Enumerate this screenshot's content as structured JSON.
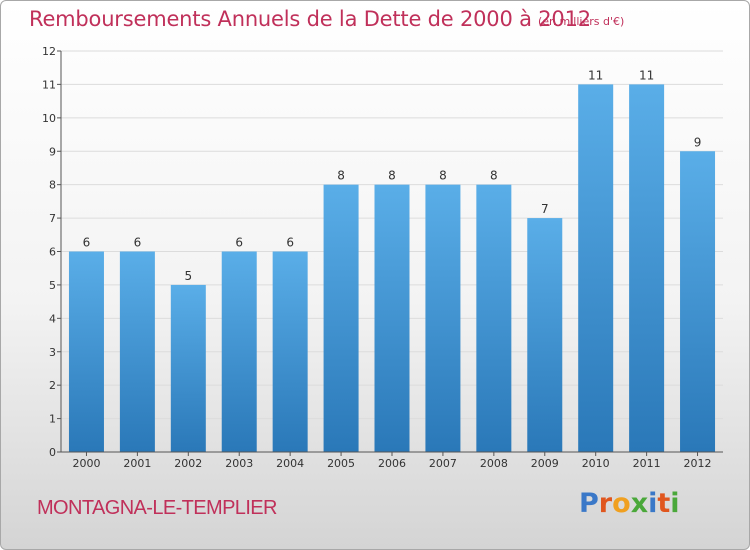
{
  "title": "Remboursements Annuels de la Dette de 2000 à 2012",
  "subtitle": "(en milliers d'€)",
  "commune": "MONTAGNA-LE-TEMPLIER",
  "logo": {
    "text": "Proxiti",
    "letter_colors": [
      "#3a78c8",
      "#e0561e",
      "#f0a020",
      "#4aa83a",
      "#3a78c8",
      "#e0561e",
      "#4aa83a"
    ]
  },
  "colors": {
    "title": "#c0305a",
    "bar_top": "#5aaee8",
    "bar_bottom": "#2a78b8",
    "axis": "#555555",
    "grid": "#dcdcdc"
  },
  "chart_data": {
    "type": "bar",
    "categories": [
      "2000",
      "2001",
      "2002",
      "2003",
      "2004",
      "2005",
      "2006",
      "2007",
      "2008",
      "2009",
      "2010",
      "2011",
      "2012"
    ],
    "values": [
      6,
      6,
      5,
      6,
      6,
      8,
      8,
      8,
      8,
      7,
      11,
      11,
      9
    ],
    "ylim": [
      0,
      12
    ],
    "yticks": [
      0,
      1,
      2,
      3,
      4,
      5,
      6,
      7,
      8,
      9,
      10,
      11,
      12
    ],
    "grid": true,
    "data_labels": true
  }
}
